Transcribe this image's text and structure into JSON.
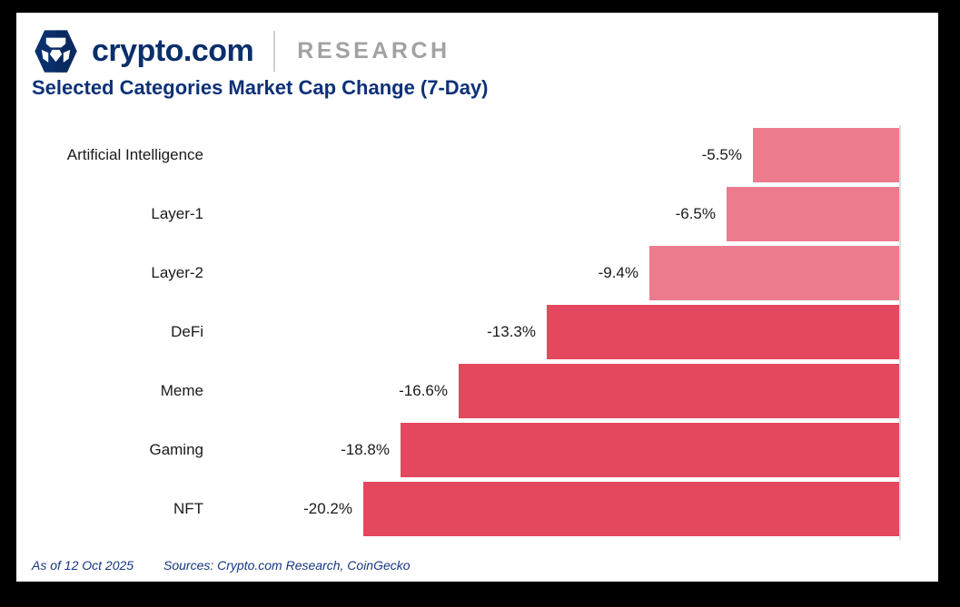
{
  "header": {
    "brand": "crypto.com",
    "unit": "RESEARCH"
  },
  "title": "Selected Categories Market Cap Change (7-Day)",
  "chart_data": {
    "type": "bar",
    "orientation": "horizontal",
    "bar_anchor": "right",
    "title": "Selected Categories Market Cap Change (7-Day)",
    "xlabel": "",
    "ylabel": "",
    "categories": [
      "Artificial Intelligence",
      "Layer-1",
      "Layer-2",
      "DeFi",
      "Meme",
      "Gaming",
      "NFT"
    ],
    "values": [
      -5.5,
      -6.5,
      -9.4,
      -13.3,
      -16.6,
      -18.8,
      -20.2
    ],
    "value_labels": [
      "-5.5%",
      "-6.5%",
      "-9.4%",
      "-13.3%",
      "-16.6%",
      "-18.8%",
      "-20.2%"
    ],
    "xlim": [
      -20.2,
      0
    ],
    "grid": false,
    "legend": "none",
    "colors": {
      "light_decline": "#EC7B8D",
      "deep_decline": "#E3485F",
      "zero_axis": "#DCDCDC",
      "label_text": "#1A1A1A"
    },
    "bar_colors": [
      "#EC7B8D",
      "#EC7B8D",
      "#EC7B8D",
      "#E3485F",
      "#E3485F",
      "#E3485F",
      "#E3485F"
    ]
  },
  "footer": {
    "as_of": "As of 12 Oct 2025",
    "sources": "Sources: Crypto.com Research, CoinGecko"
  }
}
